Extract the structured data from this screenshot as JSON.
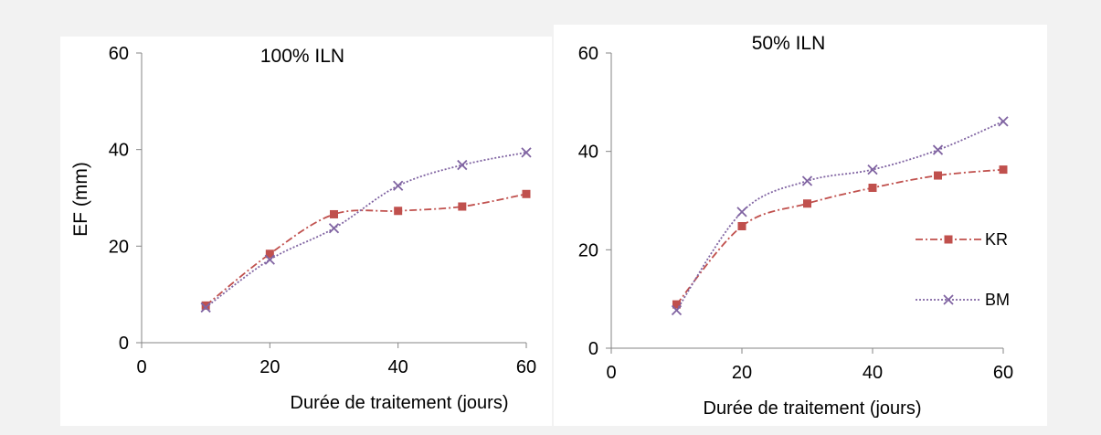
{
  "chart_data": [
    {
      "type": "line",
      "title": "100% ILN",
      "xlabel": "Durée de traitement (jours)",
      "ylabel": "EF (mm)",
      "xlim": [
        0,
        60
      ],
      "ylim": [
        0,
        60
      ],
      "xticks": [
        0,
        20,
        40,
        60
      ],
      "yticks": [
        0,
        20,
        40,
        60
      ],
      "grid": false,
      "legend": "none",
      "series": [
        {
          "name": "KR",
          "color": "#c0504d",
          "marker": "square",
          "line_style": "dash-dot",
          "x": [
            10,
            20,
            30,
            40,
            50,
            60
          ],
          "y": [
            7.7,
            18.4,
            26.6,
            27.3,
            28.2,
            30.8
          ]
        },
        {
          "name": "BM",
          "color": "#8064a2",
          "marker": "x",
          "line_style": "dotted",
          "x": [
            10,
            20,
            30,
            40,
            50,
            60
          ],
          "y": [
            7.3,
            17.2,
            23.7,
            32.5,
            36.8,
            39.4
          ]
        }
      ]
    },
    {
      "type": "line",
      "title": "50% ILN",
      "xlabel": "Durée de traitement (jours)",
      "ylabel": "",
      "xlim": [
        0,
        60
      ],
      "ylim": [
        0,
        60
      ],
      "xticks": [
        0,
        20,
        40,
        60
      ],
      "yticks": [
        0,
        20,
        40,
        60
      ],
      "grid": false,
      "legend": "right",
      "series": [
        {
          "name": "KR",
          "color": "#c0504d",
          "marker": "square",
          "line_style": "dash-dot",
          "x": [
            10,
            20,
            30,
            40,
            50,
            60
          ],
          "y": [
            8.9,
            24.8,
            29.4,
            32.6,
            35.1,
            36.3
          ]
        },
        {
          "name": "BM",
          "color": "#8064a2",
          "marker": "x",
          "line_style": "dotted",
          "x": [
            10,
            20,
            30,
            40,
            50,
            60
          ],
          "y": [
            7.7,
            27.7,
            34.0,
            36.3,
            40.3,
            46.1
          ]
        }
      ]
    }
  ]
}
